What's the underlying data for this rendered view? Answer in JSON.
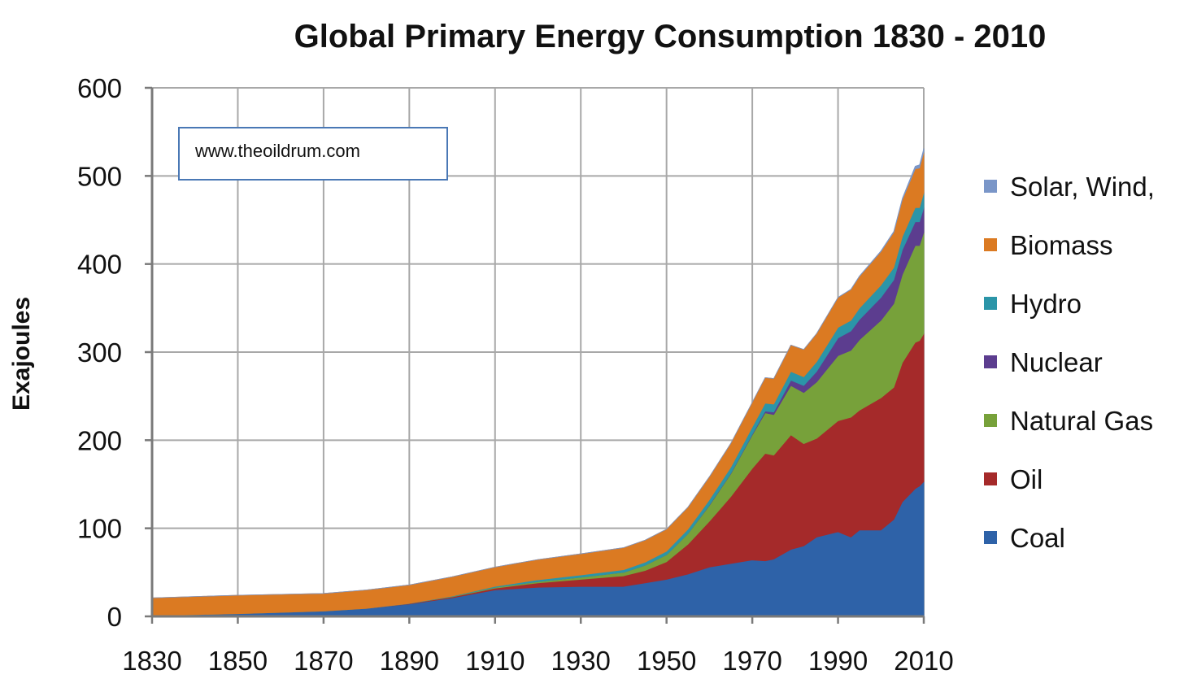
{
  "chart_data": {
    "type": "area",
    "stacked": true,
    "title": "Global Primary Energy Consumption 1830 - 2010",
    "xlabel": "",
    "ylabel": "Exajoules",
    "xlim": [
      1830,
      2010
    ],
    "ylim": [
      0,
      600
    ],
    "grid": true,
    "legend_position": "right",
    "annotation": "www.theoildrum.com",
    "x_ticks": [
      "1830",
      "1850",
      "1870",
      "1890",
      "1910",
      "1930",
      "1950",
      "1970",
      "1990",
      "2010"
    ],
    "y_ticks": [
      "0",
      "100",
      "200",
      "300",
      "400",
      "500",
      "600"
    ],
    "x": [
      1830,
      1850,
      1870,
      1880,
      1890,
      1900,
      1910,
      1920,
      1930,
      1940,
      1945,
      1950,
      1955,
      1960,
      1965,
      1970,
      1973,
      1975,
      1979,
      1982,
      1985,
      1990,
      1993,
      1995,
      2000,
      2003,
      2005,
      2008,
      2009,
      2010
    ],
    "series": [
      {
        "name": "Coal",
        "color": "#2e62a8",
        "values": [
          1,
          3,
          6,
          9,
          14,
          21,
          30,
          33,
          34,
          34,
          38,
          42,
          48,
          56,
          60,
          64,
          63,
          65,
          76,
          80,
          90,
          96,
          90,
          98,
          98,
          110,
          130,
          145,
          148,
          153
        ]
      },
      {
        "name": "Oil",
        "color": "#a52a2a",
        "values": [
          0,
          0,
          0,
          0,
          0.5,
          1,
          2,
          5,
          8,
          12,
          14,
          20,
          34,
          52,
          76,
          104,
          122,
          118,
          130,
          116,
          112,
          126,
          136,
          136,
          150,
          150,
          158,
          166,
          165,
          168
        ]
      },
      {
        "name": "Natural Gas",
        "color": "#77a13a",
        "values": [
          0,
          0,
          0,
          0,
          0,
          0.5,
          1,
          1.5,
          2.5,
          4,
          6,
          8,
          12,
          18,
          26,
          38,
          46,
          46,
          56,
          58,
          64,
          74,
          76,
          80,
          88,
          95,
          100,
          110,
          108,
          115
        ]
      },
      {
        "name": "Nuclear",
        "color": "#5c3d8f",
        "values": [
          0,
          0,
          0,
          0,
          0,
          0,
          0,
          0,
          0,
          0,
          0,
          0,
          0,
          0.5,
          0.5,
          1,
          2,
          3,
          6,
          8,
          12,
          20,
          22,
          23,
          26,
          27,
          28,
          27,
          27,
          28
        ]
      },
      {
        "name": "Hydro",
        "color": "#2b95a8",
        "values": [
          0,
          0,
          0,
          0,
          0.2,
          0.5,
          1,
          2,
          2.5,
          3,
          3.5,
          4,
          5,
          6,
          7,
          8,
          9,
          9,
          10,
          10,
          11,
          12,
          12,
          13,
          14,
          14,
          15,
          16,
          16,
          17
        ]
      },
      {
        "name": "Biomass",
        "color": "#db7a22",
        "values": [
          20,
          21,
          20,
          21,
          21,
          22,
          22,
          23,
          24,
          25,
          25,
          25,
          25,
          26,
          27,
          28,
          29,
          29,
          30,
          31,
          32,
          34,
          35,
          36,
          38,
          40,
          42,
          44,
          45,
          46
        ]
      },
      {
        "name": "Solar, Wind, Other",
        "color": "#7a96c8",
        "values": [
          0,
          0,
          0,
          0,
          0,
          0,
          0,
          0,
          0,
          0,
          0,
          0,
          0,
          0,
          0,
          0,
          0,
          0,
          0,
          0,
          0,
          0.2,
          0.3,
          0.4,
          0.8,
          1,
          1.5,
          3,
          3.5,
          4
        ]
      }
    ],
    "legend": [
      "Solar, Wind,",
      "Biomass",
      "Hydro",
      "Nuclear",
      "Natural Gas",
      "Oil",
      "Coal"
    ]
  }
}
